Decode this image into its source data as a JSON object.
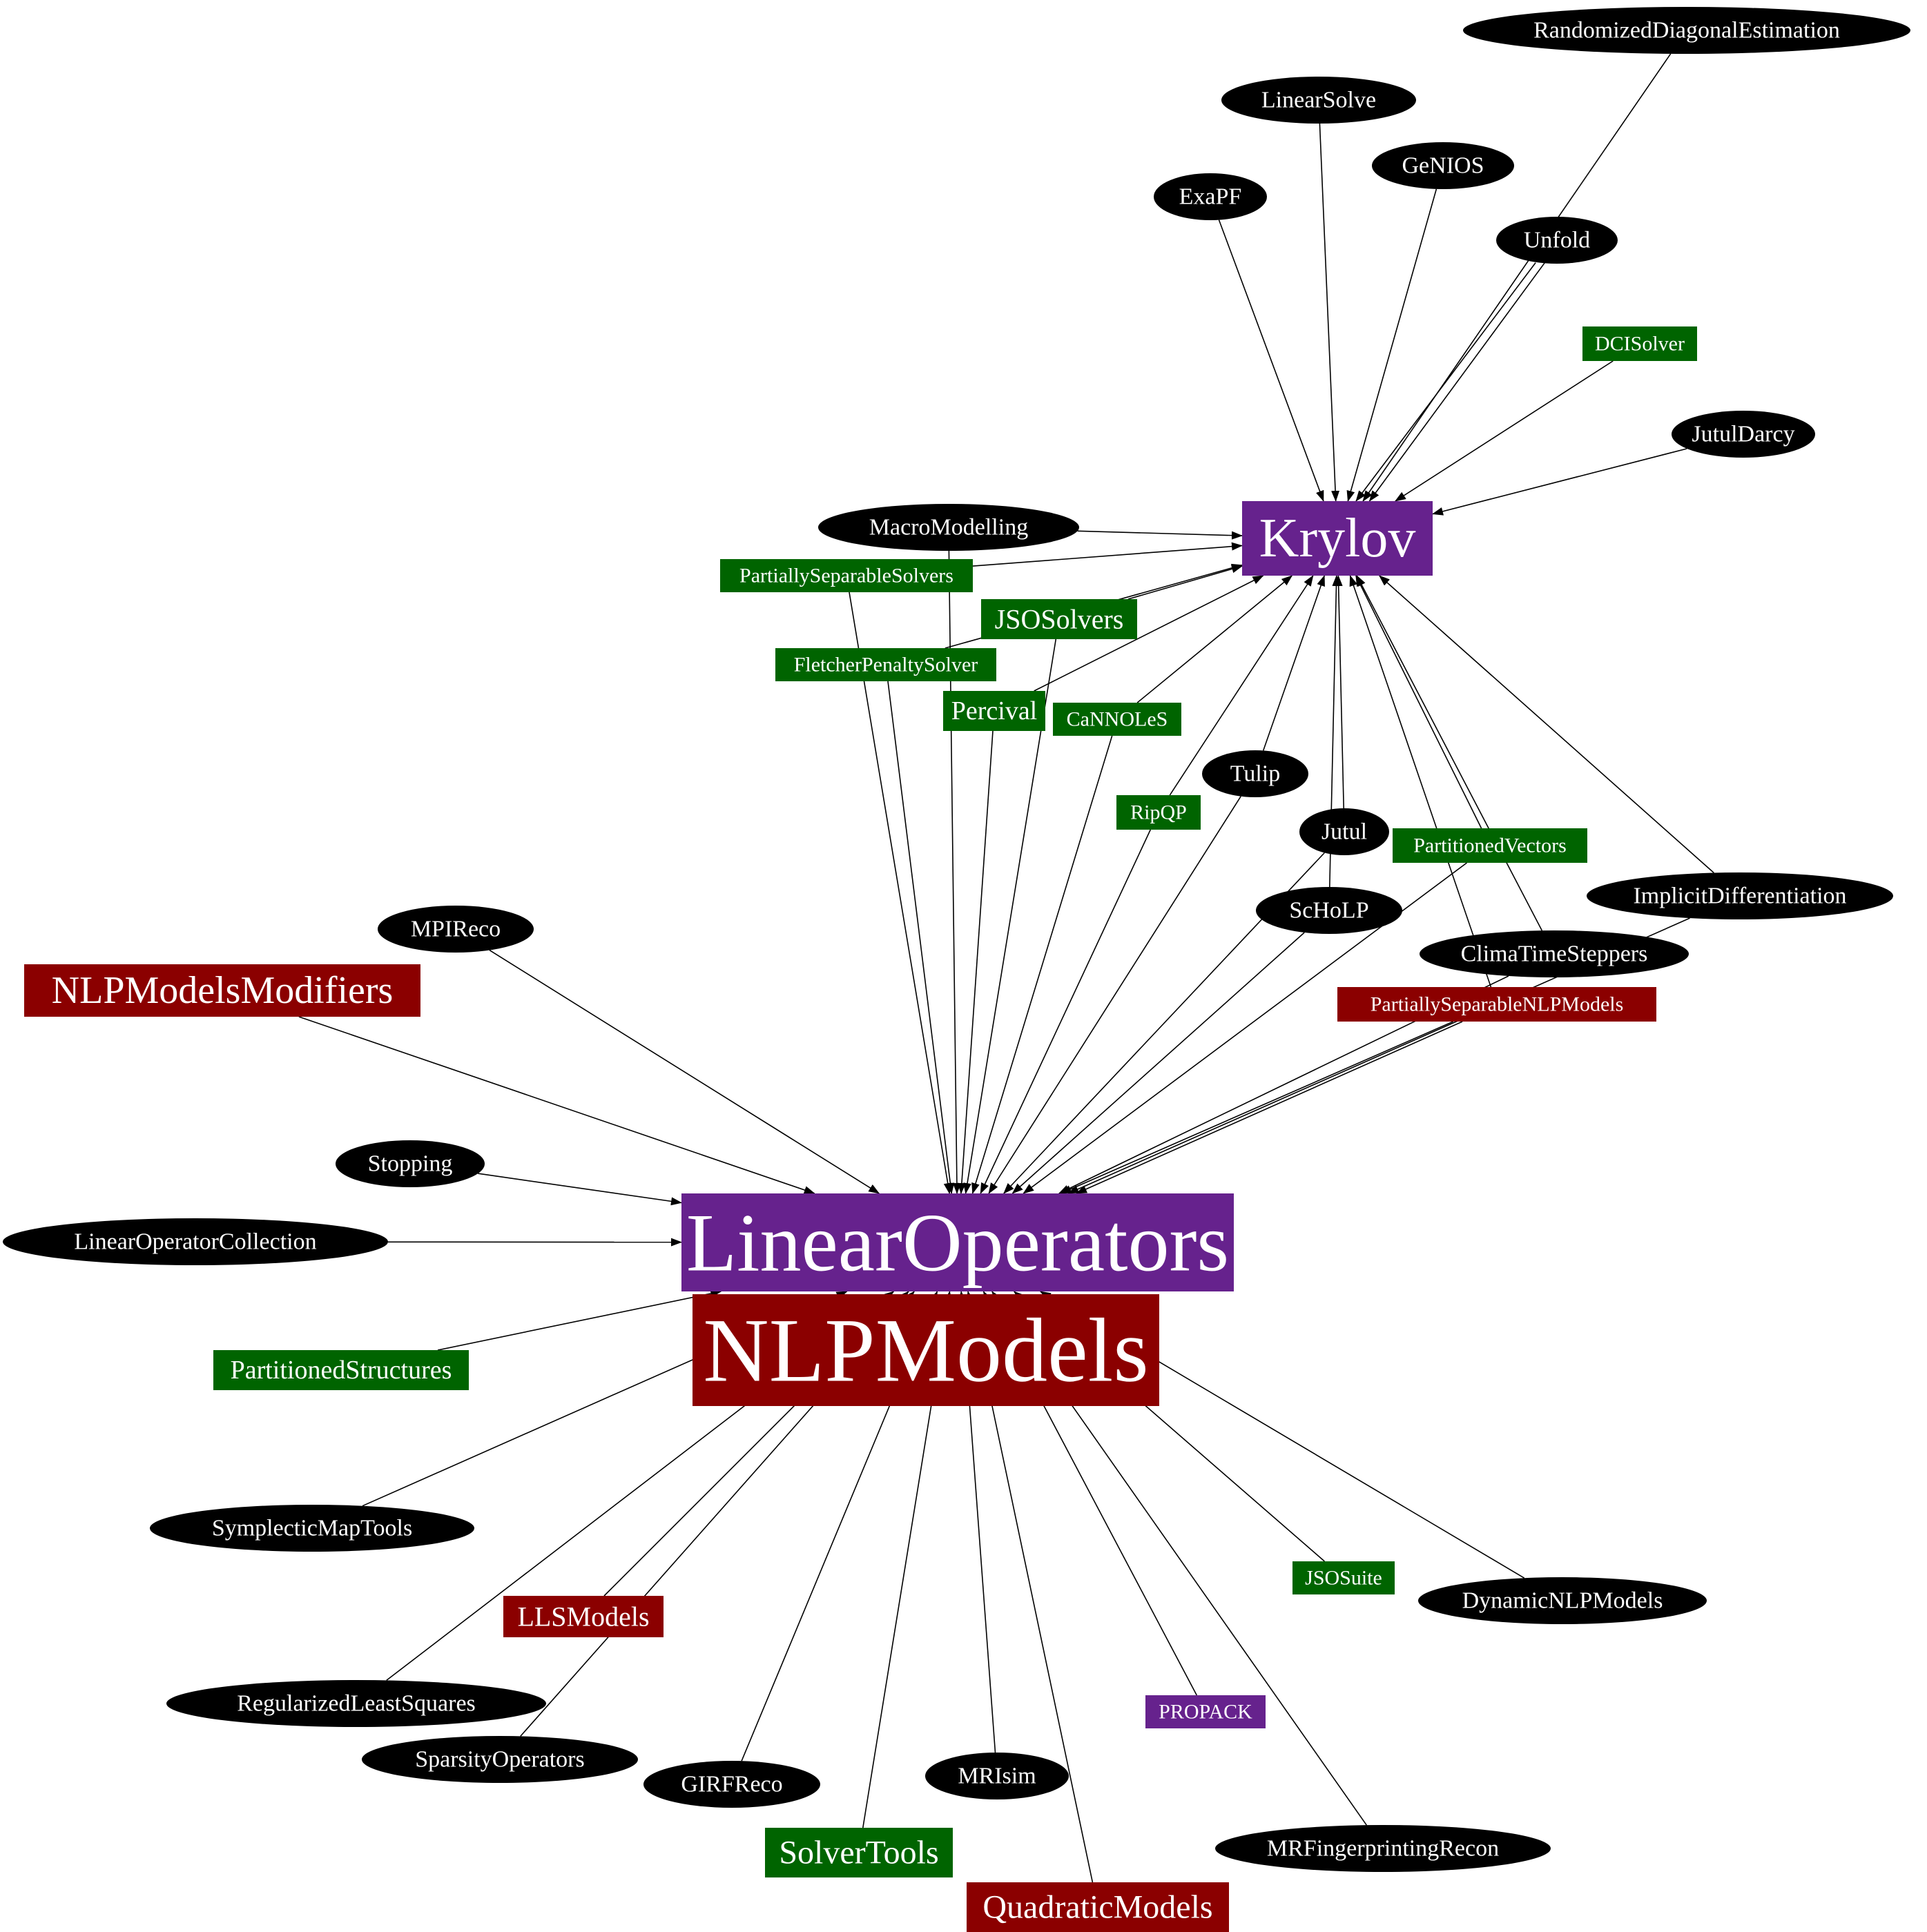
{
  "colors": {
    "background": "#ffffff",
    "ellipse": "#000000",
    "purple": "#66228d",
    "green": "#006400",
    "red": "#8b0000",
    "text": "#ffffff",
    "edge": "#000000"
  },
  "nodes": [
    {
      "id": "krylov",
      "label": "Krylov",
      "kind": "purple"
    },
    {
      "id": "linearoperators",
      "label": "LinearOperators",
      "kind": "purple"
    },
    {
      "id": "nlpmodels",
      "label": "NLPModels",
      "kind": "red"
    },
    {
      "id": "randomizeddiagonalestimation",
      "label": "RandomizedDiagonalEstimation",
      "kind": "ellipse"
    },
    {
      "id": "linearsolve",
      "label": "LinearSolve",
      "kind": "ellipse"
    },
    {
      "id": "genios",
      "label": "GeNIOS",
      "kind": "ellipse"
    },
    {
      "id": "exapf",
      "label": "ExaPF",
      "kind": "ellipse"
    },
    {
      "id": "unfold",
      "label": "Unfold",
      "kind": "ellipse"
    },
    {
      "id": "dcisolver",
      "label": "DCISolver",
      "kind": "green"
    },
    {
      "id": "jutuldarcy",
      "label": "JutulDarcy",
      "kind": "ellipse"
    },
    {
      "id": "macromodelling",
      "label": "MacroModelling",
      "kind": "ellipse"
    },
    {
      "id": "partiallyseparablesolvers",
      "label": "PartiallySeparableSolvers",
      "kind": "green"
    },
    {
      "id": "jsosolvers",
      "label": "JSOSolvers",
      "kind": "green"
    },
    {
      "id": "fletcherpenaltysolver",
      "label": "FletcherPenaltySolver",
      "kind": "green"
    },
    {
      "id": "percival",
      "label": "Percival",
      "kind": "green"
    },
    {
      "id": "cannoles",
      "label": "CaNNOLeS",
      "kind": "green"
    },
    {
      "id": "tulip",
      "label": "Tulip",
      "kind": "ellipse"
    },
    {
      "id": "ripqp",
      "label": "RipQP",
      "kind": "green"
    },
    {
      "id": "jutul",
      "label": "Jutul",
      "kind": "ellipse"
    },
    {
      "id": "partitionedvectors",
      "label": "PartitionedVectors",
      "kind": "green"
    },
    {
      "id": "implicitdifferentiation",
      "label": "ImplicitDifferentiation",
      "kind": "ellipse"
    },
    {
      "id": "scholp",
      "label": "ScHoLP",
      "kind": "ellipse"
    },
    {
      "id": "climatimesteppers",
      "label": "ClimaTimeSteppers",
      "kind": "ellipse"
    },
    {
      "id": "partiallyseparablenlpmodels",
      "label": "PartiallySeparableNLPModels",
      "kind": "red"
    },
    {
      "id": "mpireco",
      "label": "MPIReco",
      "kind": "ellipse"
    },
    {
      "id": "nlpmodelsmodifiers",
      "label": "NLPModelsModifiers",
      "kind": "red"
    },
    {
      "id": "stopping",
      "label": "Stopping",
      "kind": "ellipse"
    },
    {
      "id": "linearoperatorcollection",
      "label": "LinearOperatorCollection",
      "kind": "ellipse"
    },
    {
      "id": "partitionedstructures",
      "label": "PartitionedStructures",
      "kind": "green"
    },
    {
      "id": "symplecticmaptools",
      "label": "SymplecticMapTools",
      "kind": "ellipse"
    },
    {
      "id": "llsmodels",
      "label": "LLSModels",
      "kind": "red"
    },
    {
      "id": "regularizedleastsquares",
      "label": "RegularizedLeastSquares",
      "kind": "ellipse"
    },
    {
      "id": "sparsityoperators",
      "label": "SparsityOperators",
      "kind": "ellipse"
    },
    {
      "id": "girfreco",
      "label": "GIRFReco",
      "kind": "ellipse"
    },
    {
      "id": "mrisim",
      "label": "MRIsim",
      "kind": "ellipse"
    },
    {
      "id": "solvertools",
      "label": "SolverTools",
      "kind": "green"
    },
    {
      "id": "quadraticmodels",
      "label": "QuadraticModels",
      "kind": "red"
    },
    {
      "id": "propack",
      "label": "PROPACK",
      "kind": "purple"
    },
    {
      "id": "mrfingerprintingrecon",
      "label": "MRFingerprintingRecon",
      "kind": "ellipse"
    },
    {
      "id": "jsosuite",
      "label": "JSOSuite",
      "kind": "green"
    },
    {
      "id": "dynamicnlpmodels",
      "label": "DynamicNLPModels",
      "kind": "ellipse"
    }
  ],
  "edges": [
    [
      "randomizeddiagonalestimation",
      "krylov"
    ],
    [
      "linearsolve",
      "krylov"
    ],
    [
      "genios",
      "krylov"
    ],
    [
      "exapf",
      "krylov"
    ],
    [
      "unfold",
      "krylov"
    ],
    [
      "unfold",
      "krylov"
    ],
    [
      "dcisolver",
      "krylov"
    ],
    [
      "jutuldarcy",
      "krylov"
    ],
    [
      "macromodelling",
      "krylov"
    ],
    [
      "partiallyseparablesolvers",
      "krylov"
    ],
    [
      "jsosolvers",
      "krylov"
    ],
    [
      "fletcherpenaltysolver",
      "krylov"
    ],
    [
      "percival",
      "krylov"
    ],
    [
      "cannoles",
      "krylov"
    ],
    [
      "ripqp",
      "krylov"
    ],
    [
      "tulip",
      "krylov"
    ],
    [
      "jutul",
      "krylov"
    ],
    [
      "scholp",
      "krylov"
    ],
    [
      "partitionedvectors",
      "krylov"
    ],
    [
      "climatimesteppers",
      "krylov"
    ],
    [
      "implicitdifferentiation",
      "krylov"
    ],
    [
      "partiallyseparablenlpmodels",
      "krylov"
    ],
    [
      "macromodelling",
      "linearoperators"
    ],
    [
      "partiallyseparablesolvers",
      "linearoperators"
    ],
    [
      "jsosolvers",
      "linearoperators"
    ],
    [
      "fletcherpenaltysolver",
      "linearoperators"
    ],
    [
      "percival",
      "linearoperators"
    ],
    [
      "cannoles",
      "linearoperators"
    ],
    [
      "ripqp",
      "linearoperators"
    ],
    [
      "tulip",
      "linearoperators"
    ],
    [
      "jutul",
      "linearoperators"
    ],
    [
      "scholp",
      "linearoperators"
    ],
    [
      "partitionedvectors",
      "linearoperators"
    ],
    [
      "climatimesteppers",
      "linearoperators"
    ],
    [
      "implicitdifferentiation",
      "linearoperators"
    ],
    [
      "partiallyseparablenlpmodels",
      "linearoperators"
    ],
    [
      "partiallyseparablenlpmodels",
      "linearoperators"
    ],
    [
      "mpireco",
      "linearoperators"
    ],
    [
      "nlpmodelsmodifiers",
      "linearoperators"
    ],
    [
      "stopping",
      "linearoperators"
    ],
    [
      "linearoperatorcollection",
      "linearoperators"
    ],
    [
      "partitionedstructures",
      "linearoperators"
    ],
    [
      "symplecticmaptools",
      "linearoperators"
    ],
    [
      "regularizedleastsquares",
      "linearoperators"
    ],
    [
      "llsmodels",
      "linearoperators"
    ],
    [
      "sparsityoperators",
      "linearoperators"
    ],
    [
      "girfreco",
      "linearoperators"
    ],
    [
      "solvertools",
      "linearoperators"
    ],
    [
      "mrisim",
      "linearoperators"
    ],
    [
      "quadraticmodels",
      "linearoperators"
    ],
    [
      "propack",
      "linearoperators"
    ],
    [
      "mrfingerprintingrecon",
      "linearoperators"
    ],
    [
      "jsosuite",
      "linearoperators"
    ],
    [
      "dynamicnlpmodels",
      "linearoperators"
    ]
  ]
}
